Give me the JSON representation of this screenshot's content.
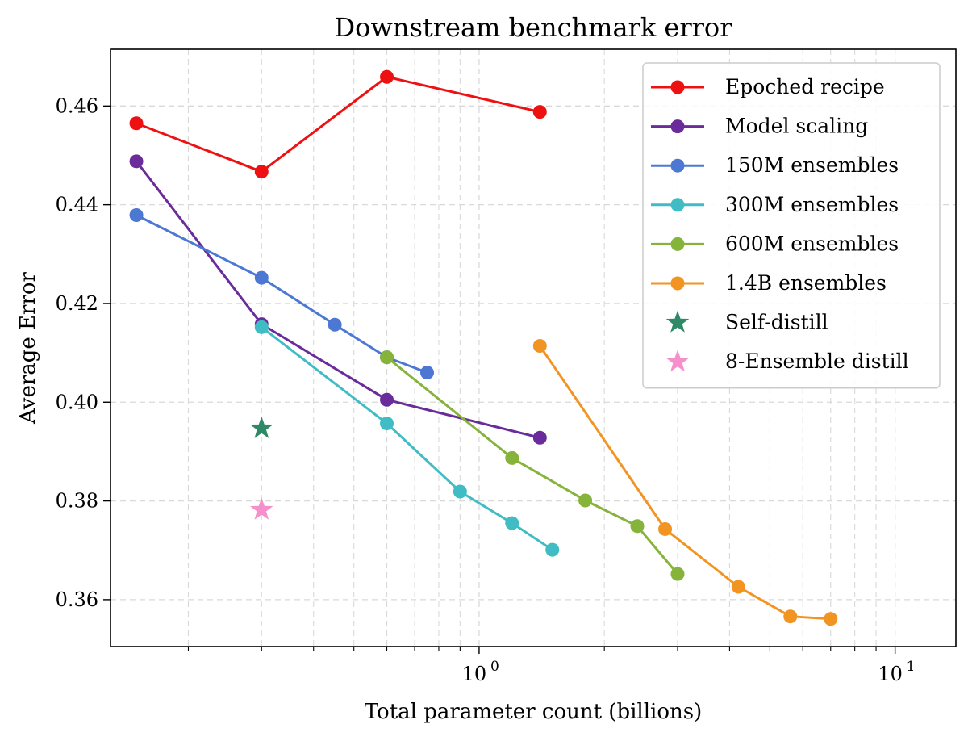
{
  "chart_data": {
    "type": "line",
    "title": "Downstream benchmark error",
    "xlabel": "Total parameter count (billions)",
    "ylabel": "Average Error",
    "xscale": "log",
    "xlim": [
      0.13,
      14
    ],
    "ylim": [
      0.3505,
      0.4715
    ],
    "grid": true,
    "legend_position": "top-right",
    "x_major_ticks": [
      {
        "value": 1,
        "base": "10",
        "exp": "0"
      },
      {
        "value": 10,
        "base": "10",
        "exp": "1"
      }
    ],
    "y_ticks": [
      {
        "value": 0.36,
        "label": "0.36"
      },
      {
        "value": 0.38,
        "label": "0.38"
      },
      {
        "value": 0.4,
        "label": "0.40"
      },
      {
        "value": 0.42,
        "label": "0.42"
      },
      {
        "value": 0.44,
        "label": "0.44"
      },
      {
        "value": 0.46,
        "label": "0.46"
      }
    ],
    "series": [
      {
        "name": "Epoched recipe",
        "color": "#ee1111",
        "marker": "circle",
        "x": [
          0.15,
          0.3,
          0.6,
          1.4
        ],
        "y": [
          0.4565,
          0.4467,
          0.4659,
          0.4588
        ]
      },
      {
        "name": "Model scaling",
        "color": "#6a2c9a",
        "marker": "circle",
        "x": [
          0.15,
          0.3,
          0.6,
          1.4
        ],
        "y": [
          0.4488,
          0.4158,
          0.4005,
          0.3928
        ]
      },
      {
        "name": "150M ensembles",
        "color": "#4c78d4",
        "marker": "circle",
        "x": [
          0.15,
          0.3,
          0.45,
          0.6,
          0.75
        ],
        "y": [
          0.4379,
          0.4252,
          0.4157,
          0.4091,
          0.406
        ]
      },
      {
        "name": "300M ensembles",
        "color": "#40bcc4",
        "marker": "circle",
        "x": [
          0.3,
          0.6,
          0.9,
          1.2,
          1.5
        ],
        "y": [
          0.4152,
          0.3957,
          0.3819,
          0.3755,
          0.3701
        ]
      },
      {
        "name": "600M ensembles",
        "color": "#86b33a",
        "marker": "circle",
        "x": [
          0.6,
          1.2,
          1.8,
          2.4,
          3.0
        ],
        "y": [
          0.4091,
          0.3887,
          0.3801,
          0.3749,
          0.3652
        ]
      },
      {
        "name": "1.4B ensembles",
        "color": "#f29422",
        "marker": "circle",
        "x": [
          1.4,
          2.8,
          4.2,
          5.6,
          7.0
        ],
        "y": [
          0.4114,
          0.3743,
          0.3626,
          0.3566,
          0.3561
        ]
      },
      {
        "name": "Self-distill",
        "color": "#2e8a66",
        "marker": "star",
        "x": [
          0.3
        ],
        "y": [
          0.3947
        ]
      },
      {
        "name": "8-Ensemble distill",
        "color": "#f590cc",
        "marker": "star",
        "x": [
          0.3
        ],
        "y": [
          0.3782
        ]
      }
    ]
  }
}
